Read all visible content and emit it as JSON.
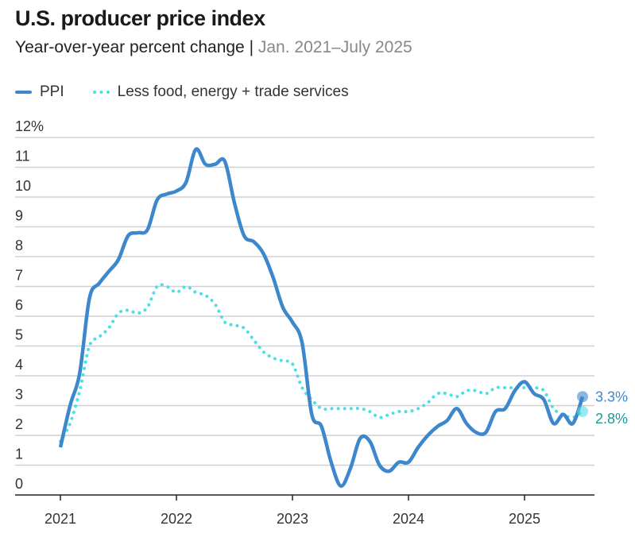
{
  "title": "U.S. producer price index",
  "subtitle": "Year-over-year percent change |",
  "subtitle_range": "Jan. 2021–July 2025",
  "chart_data": {
    "type": "line",
    "title": "U.S. producer price index",
    "ylim": [
      0,
      12
    ],
    "y_ticks": [
      "0",
      "1",
      "2",
      "3",
      "4",
      "5",
      "6",
      "7",
      "8",
      "9",
      "10",
      "11",
      "12%"
    ],
    "x_ticks": [
      "2021",
      "2022",
      "2023",
      "2024",
      "2025"
    ],
    "x_start": "2021-01",
    "x_end": "2025-07",
    "legend": "top-left",
    "grid": true,
    "colors": {
      "ppi": "#3d87cc",
      "core": "#4fdde8",
      "core_label": "#1a9a96"
    },
    "series": [
      {
        "name": "PPI",
        "end_label": "3.3%",
        "values": [
          1.6,
          3.0,
          4.1,
          6.6,
          7.1,
          7.5,
          7.9,
          8.7,
          8.8,
          8.9,
          9.9,
          10.1,
          10.2,
          10.5,
          11.6,
          11.1,
          11.1,
          11.2,
          9.8,
          8.7,
          8.5,
          8.1,
          7.3,
          6.3,
          5.8,
          5.1,
          2.7,
          2.3,
          1.1,
          0.3,
          0.9,
          1.9,
          1.8,
          1.0,
          0.8,
          1.1,
          1.1,
          1.6,
          2.0,
          2.3,
          2.5,
          2.9,
          2.4,
          2.1,
          2.1,
          2.8,
          2.9,
          3.5,
          3.8,
          3.4,
          3.2,
          2.4,
          2.7,
          2.4,
          3.3
        ]
      },
      {
        "name": "Less food, energy + trade services",
        "end_label": "2.8%",
        "values": [
          1.8,
          2.4,
          3.5,
          5.0,
          5.3,
          5.6,
          6.1,
          6.2,
          6.1,
          6.3,
          7.0,
          7.0,
          6.8,
          7.0,
          6.8,
          6.7,
          6.4,
          5.8,
          5.7,
          5.6,
          5.2,
          4.8,
          4.6,
          4.5,
          4.4,
          3.6,
          3.2,
          2.9,
          2.9,
          2.9,
          2.9,
          2.9,
          2.8,
          2.6,
          2.7,
          2.8,
          2.8,
          2.9,
          3.1,
          3.4,
          3.4,
          3.3,
          3.5,
          3.5,
          3.4,
          3.6,
          3.6,
          3.6,
          3.6,
          3.6,
          3.5,
          2.9,
          2.7,
          2.6,
          2.8
        ]
      }
    ]
  }
}
